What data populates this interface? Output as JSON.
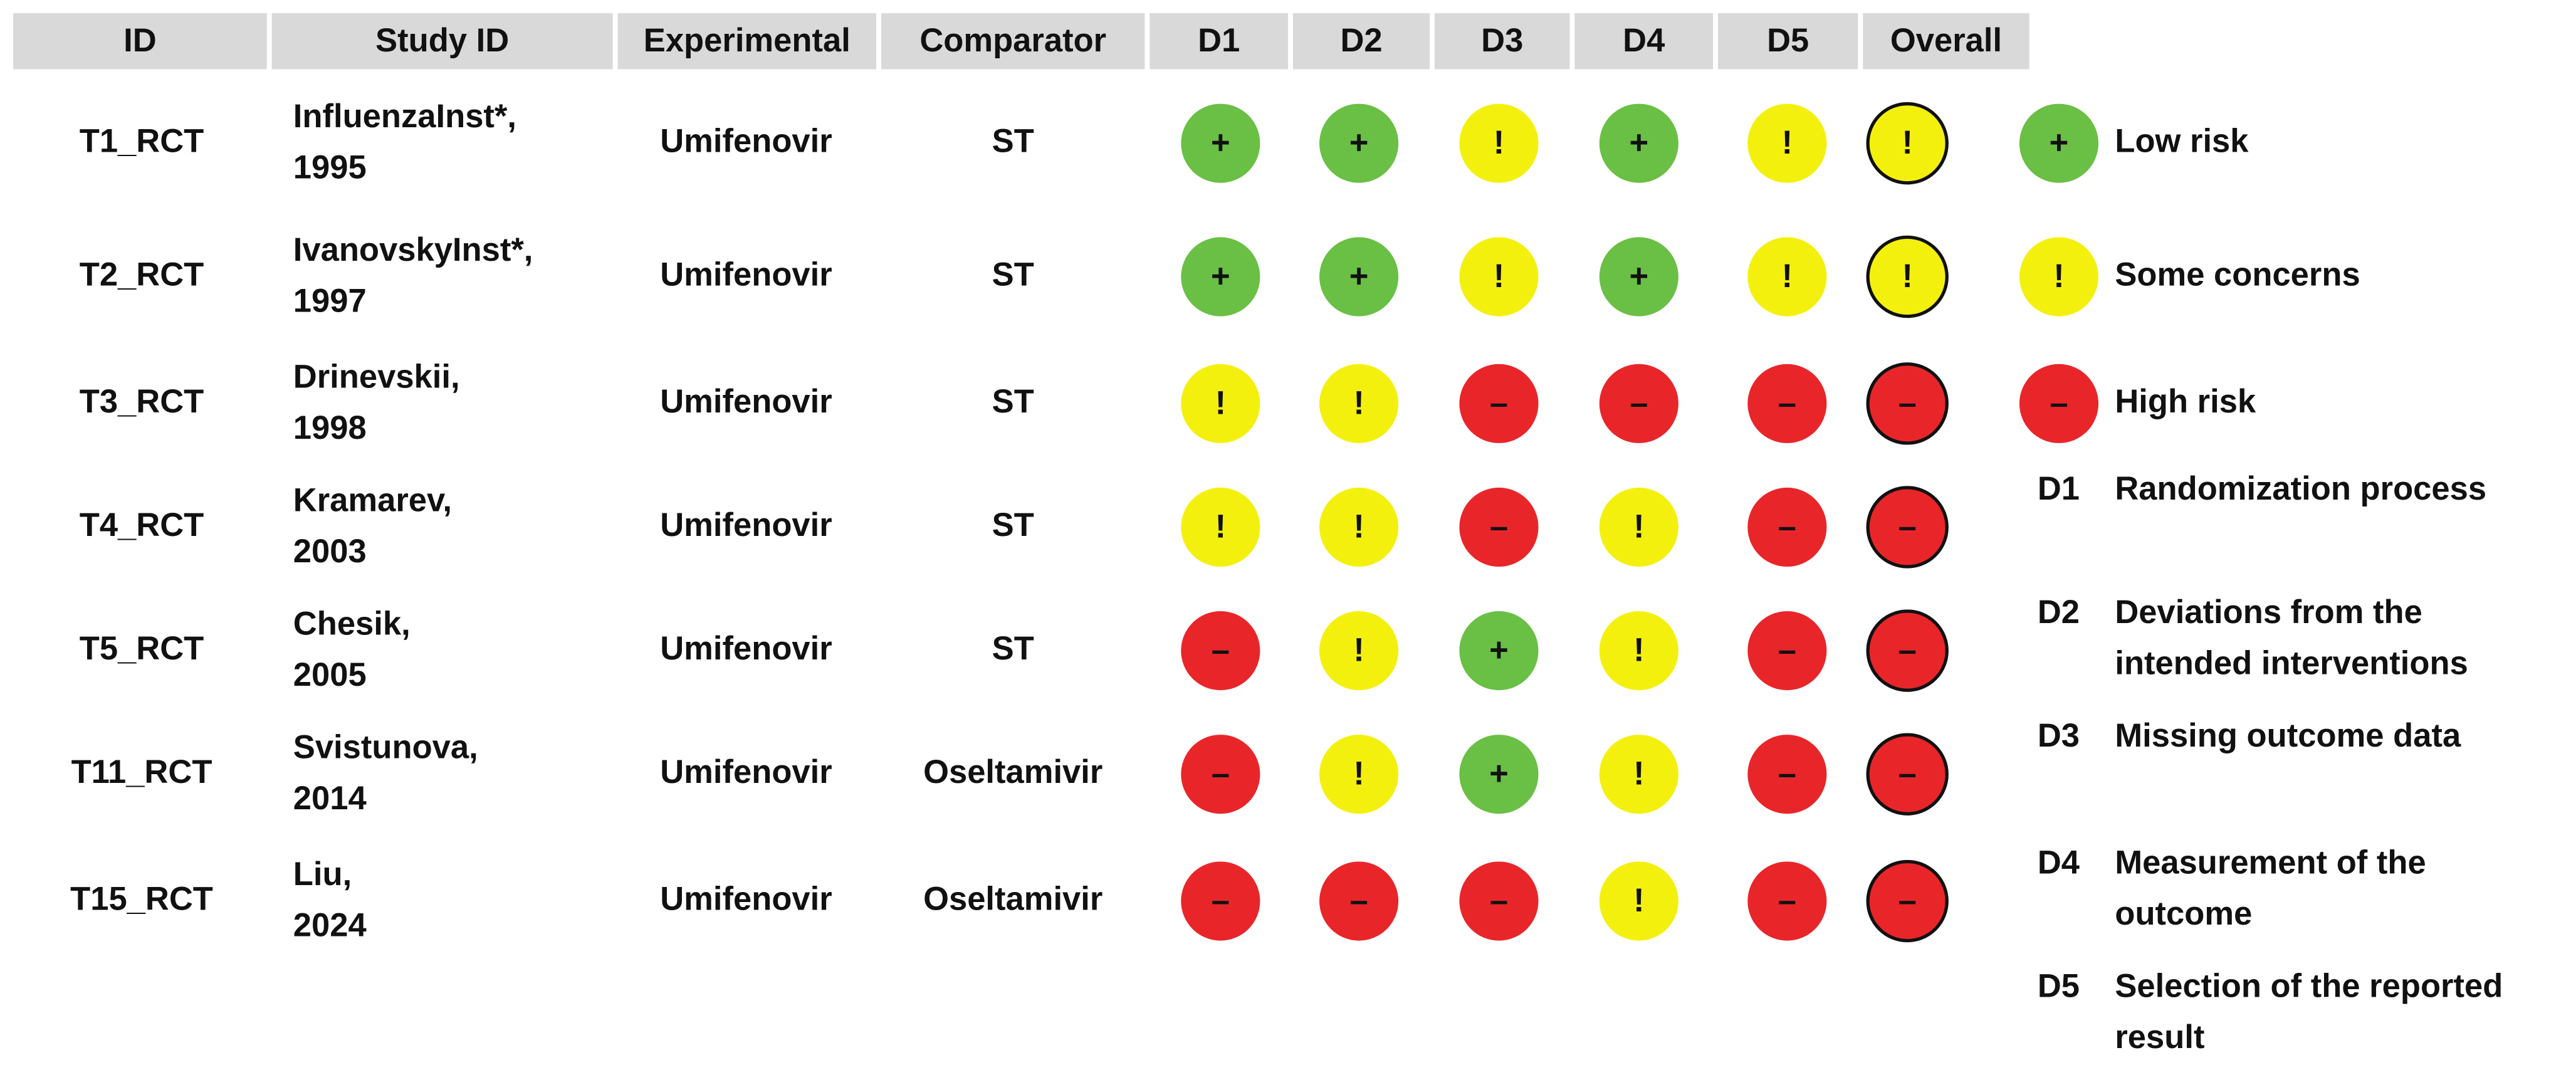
{
  "header": [
    "ID",
    "Study ID",
    "Experimental",
    "Comparator",
    "D1",
    "D2",
    "D3",
    "D4",
    "D5",
    "Overall"
  ],
  "rows": [
    {
      "id": "T1_RCT",
      "study": [
        "InfluenzaInst*,",
        "1995"
      ],
      "experimental": "Umifenovir",
      "comparator": "ST",
      "domains": [
        "+",
        "+",
        "!",
        "+",
        "!"
      ],
      "overall": "!"
    },
    {
      "id": "T2_RCT",
      "study": [
        "IvanovskyInst*,",
        "1997"
      ],
      "experimental": "Umifenovir",
      "comparator": "ST",
      "domains": [
        "+",
        "+",
        "!",
        "+",
        "!"
      ],
      "overall": "!"
    },
    {
      "id": "T3_RCT",
      "study": [
        "Drinevskii,",
        "1998"
      ],
      "experimental": "Umifenovir",
      "comparator": "ST",
      "domains": [
        "!",
        "!",
        "–",
        "–",
        "–"
      ],
      "overall": "–"
    },
    {
      "id": "T4_RCT",
      "study": [
        "Kramarev,",
        "2003"
      ],
      "experimental": "Umifenovir",
      "comparator": "ST",
      "domains": [
        "!",
        "!",
        "–",
        "!",
        "–"
      ],
      "overall": "–"
    },
    {
      "id": "T5_RCT",
      "study": [
        "Chesik,",
        "2005"
      ],
      "experimental": "Umifenovir",
      "comparator": "ST",
      "domains": [
        "–",
        "!",
        "+",
        "!",
        "–"
      ],
      "overall": "–"
    },
    {
      "id": "T11_RCT",
      "study": [
        "Svistunova,",
        "2014"
      ],
      "experimental": "Umifenovir",
      "comparator": "Oseltamivir",
      "domains": [
        "–",
        "!",
        "+",
        "!",
        "–"
      ],
      "overall": "–"
    },
    {
      "id": "T15_RCT",
      "study": [
        "Liu,",
        "2024"
      ],
      "experimental": "Umifenovir",
      "comparator": "Oseltamivir",
      "domains": [
        "–",
        "–",
        "–",
        "!",
        "–"
      ],
      "overall": "–"
    }
  ],
  "legend": [
    {
      "symbol": "+",
      "label": "Low risk",
      "color": "#6abf45"
    },
    {
      "symbol": "!",
      "label": "Some concerns",
      "color": "#f4f00e"
    },
    {
      "symbol": "–",
      "label": "High risk",
      "color": "#e8262a"
    }
  ],
  "domain_key": [
    {
      "code": "D1",
      "text": [
        "Randomization process"
      ]
    },
    {
      "code": "D2",
      "text": [
        "Deviations from the",
        "intended interventions"
      ]
    },
    {
      "code": "D3",
      "text": [
        "Missing outcome data"
      ]
    },
    {
      "code": "D4",
      "text": [
        "Measurement of the",
        "outcome"
      ]
    },
    {
      "code": "D5",
      "text": [
        "Selection of the reported",
        "result"
      ]
    }
  ]
}
